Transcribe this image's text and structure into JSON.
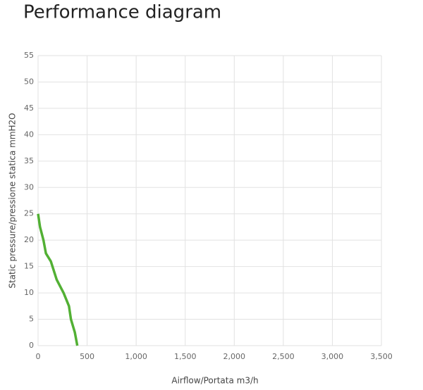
{
  "chart_data": {
    "type": "line",
    "title": "Performance diagram",
    "x_label": "Airflow/Portata m3/h",
    "y_label": "Static pressure/pressione statica mmH2O",
    "x": [
      0,
      20,
      55,
      80,
      130,
      190,
      260,
      315,
      335,
      375,
      400
    ],
    "series": [
      {
        "color": "#52b034",
        "values": [
          25,
          22.5,
          20,
          17.5,
          16,
          12.5,
          10,
          7.5,
          5,
          2.5,
          0
        ]
      }
    ],
    "xlim": [
      0,
      3500
    ],
    "xticks": [
      0,
      500,
      {
        "value": 1000,
        "label": "1,000"
      },
      {
        "value": 1500,
        "label": "1,500"
      },
      {
        "value": 2000,
        "label": "2,000"
      },
      {
        "value": 2500,
        "label": "2,500"
      },
      {
        "value": 3000,
        "label": "3,000"
      },
      {
        "value": 3500,
        "label": "3,500"
      }
    ],
    "ylim": [
      0,
      55
    ],
    "yticks": [
      0,
      5,
      10,
      15,
      20,
      25,
      30,
      35,
      40,
      45,
      50,
      55
    ],
    "grid": true
  }
}
